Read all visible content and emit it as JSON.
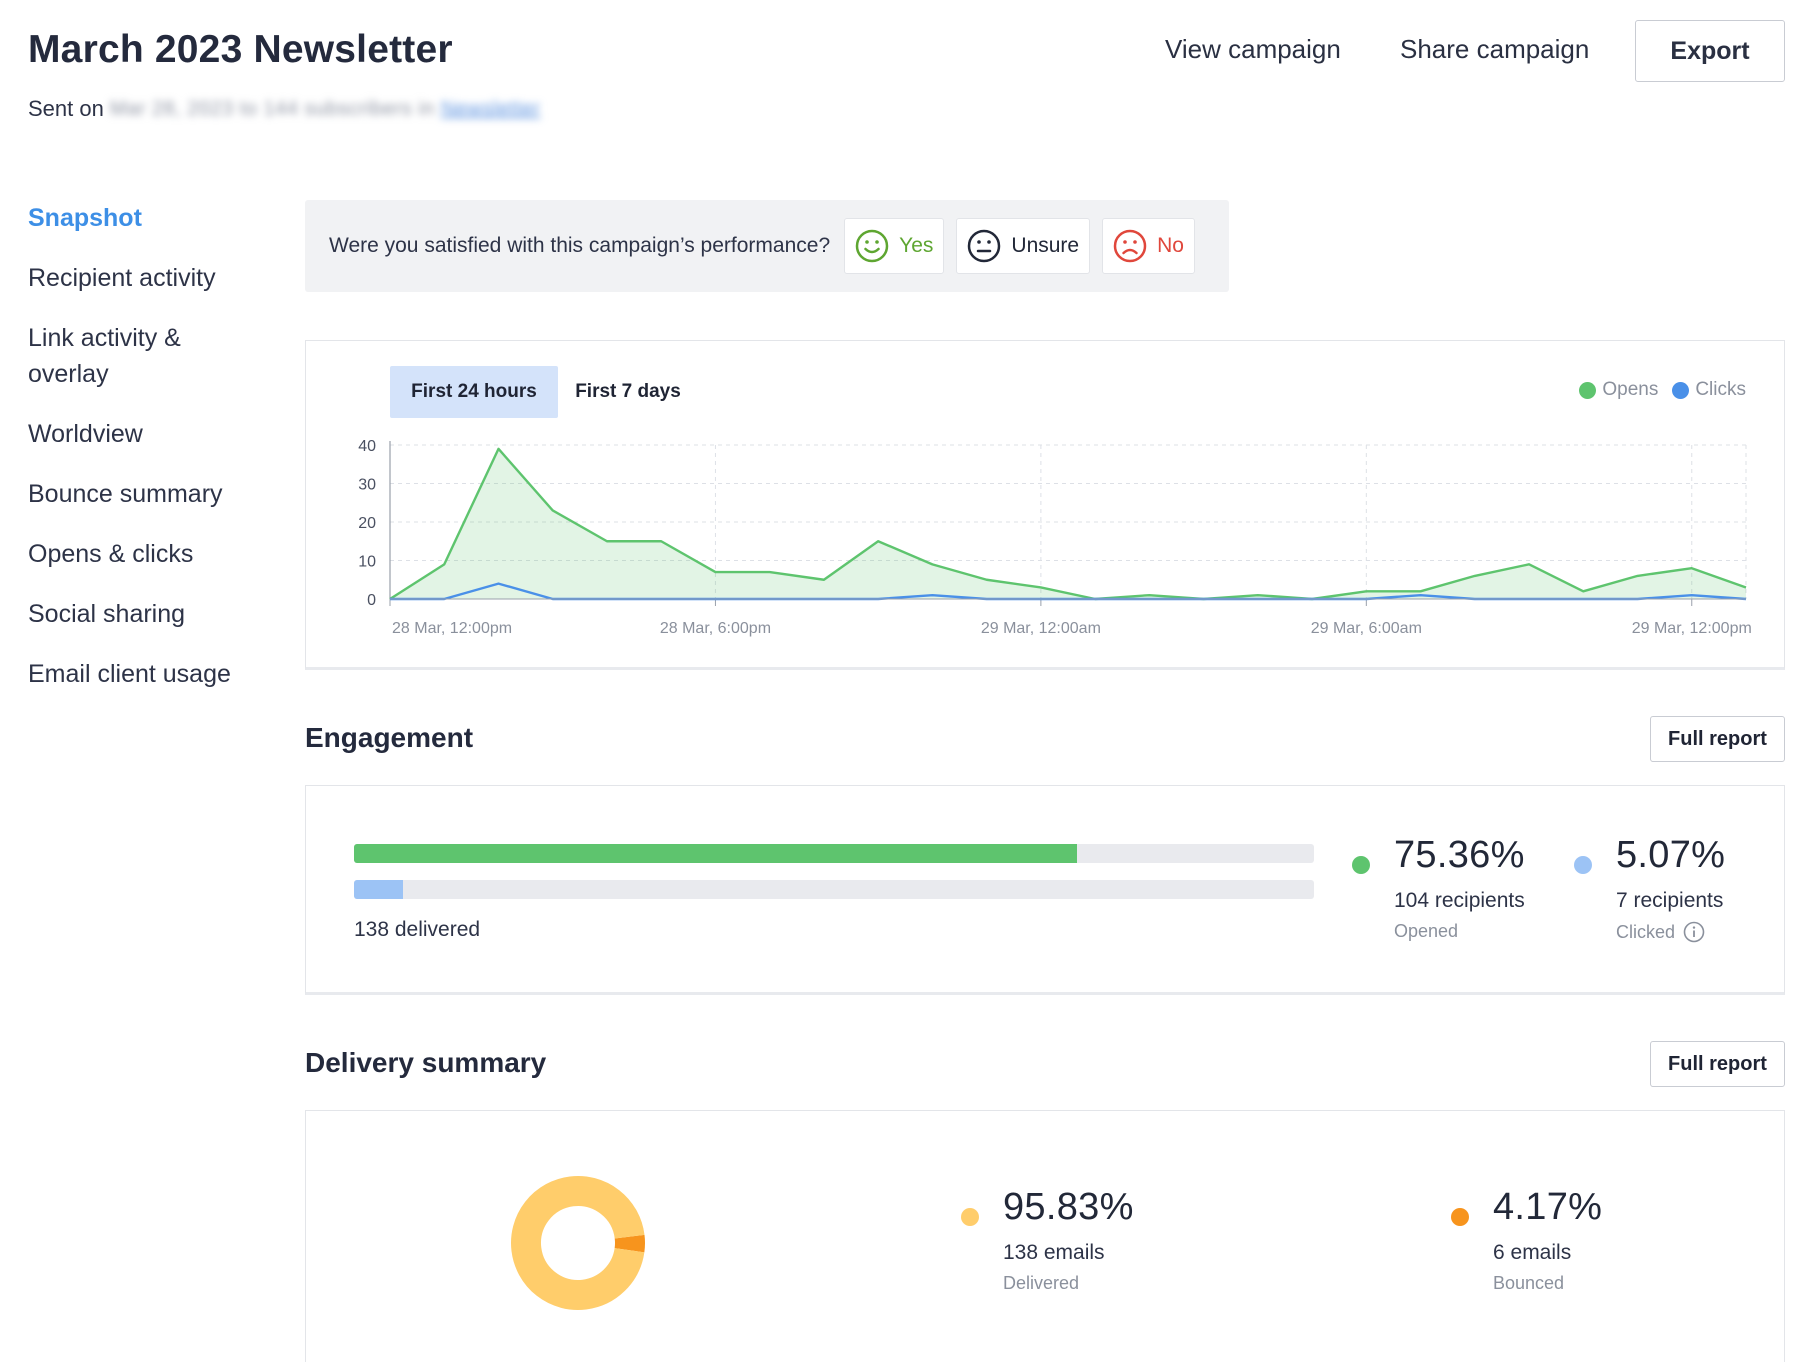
{
  "header": {
    "title": "March 2023 Newsletter",
    "sent_prefix": "Sent on",
    "sent_blurred": "Mar 28, 2023 to 144 subscribers in",
    "sent_blurred_link": "Newsletter",
    "view_campaign": "View campaign",
    "share_campaign": "Share campaign",
    "export": "Export"
  },
  "sidebar": {
    "items": [
      {
        "label": "Snapshot",
        "active": true
      },
      {
        "label": "Recipient activity"
      },
      {
        "label": "Link activity &"
      },
      {
        "label": "overlay"
      },
      {
        "label": "Worldview"
      },
      {
        "label": "Bounce summary"
      },
      {
        "label": "Opens & clicks"
      },
      {
        "label": "Social sharing"
      },
      {
        "label": "Email client usage"
      }
    ]
  },
  "satisfaction": {
    "question": "Were you satisfied with this campaign’s performance?",
    "yes": "Yes",
    "unsure": "Unsure",
    "no": "No",
    "colors": {
      "yes": "#5ea631",
      "unsure": "#222838",
      "no": "#e0473c"
    }
  },
  "chart_tabs": {
    "active": "First 24 hours",
    "other": "First 7 days"
  },
  "chart_data": {
    "type": "area",
    "legend": [
      {
        "name": "Opens",
        "color": "#5ec46e"
      },
      {
        "name": "Clicks",
        "color": "#4a90e8"
      }
    ],
    "legend_position": "top-right",
    "ylim": [
      0,
      40
    ],
    "yticks": [
      0,
      10,
      20,
      30,
      40
    ],
    "xtick_labels": [
      "28 Mar, 12:00pm",
      "28 Mar, 6:00pm",
      "29 Mar, 12:00am",
      "29 Mar, 6:00am",
      "29 Mar, 12:00pm"
    ],
    "grid": true,
    "x": [
      "28 Mar, 12:00pm",
      "28 Mar, 1:00pm",
      "28 Mar, 2:00pm",
      "28 Mar, 3:00pm",
      "28 Mar, 4:00pm",
      "28 Mar, 5:00pm",
      "28 Mar, 6:00pm",
      "28 Mar, 7:00pm",
      "28 Mar, 8:00pm",
      "28 Mar, 9:00pm",
      "28 Mar, 10:00pm",
      "28 Mar, 11:00pm",
      "29 Mar, 12:00am",
      "29 Mar, 1:00am",
      "29 Mar, 2:00am",
      "29 Mar, 3:00am",
      "29 Mar, 4:00am",
      "29 Mar, 5:00am",
      "29 Mar, 6:00am",
      "29 Mar, 7:00am",
      "29 Mar, 8:00am",
      "29 Mar, 9:00am",
      "29 Mar, 10:00am",
      "29 Mar, 11:00am",
      "29 Mar, 12:00pm",
      "29 Mar, 1:00pm"
    ],
    "series": [
      {
        "name": "Opens",
        "values": [
          0,
          9,
          39,
          23,
          15,
          15,
          7,
          7,
          5,
          15,
          9,
          5,
          3,
          0,
          1,
          0,
          1,
          0,
          2,
          2,
          6,
          9,
          2,
          6,
          8,
          3
        ]
      },
      {
        "name": "Clicks",
        "values": [
          0,
          0,
          4,
          0,
          0,
          0,
          0,
          0,
          0,
          0,
          1,
          0,
          0,
          0,
          0,
          0,
          0,
          0,
          0,
          1,
          0,
          0,
          0,
          0,
          1,
          0
        ]
      }
    ]
  },
  "engagement": {
    "title": "Engagement",
    "full_report": "Full report",
    "delivered_label": "138 delivered",
    "opened": {
      "pct": "75.36%",
      "value": 0.7536,
      "count": "104 recipients",
      "label": "Opened",
      "color": "#5ec46e"
    },
    "clicked": {
      "pct": "5.07%",
      "value": 0.0507,
      "count": "7 recipients",
      "label": "Clicked",
      "color": "#9cc3f5"
    }
  },
  "delivery": {
    "title": "Delivery summary",
    "full_report": "Full report",
    "delivered": {
      "pct": "95.83%",
      "value": 0.9583,
      "count": "138 emails",
      "label": "Delivered",
      "color": "#ffcd6b"
    },
    "bounced": {
      "pct": "4.17%",
      "value": 0.0417,
      "count": "6 emails",
      "label": "Bounced",
      "color": "#f7941d"
    }
  }
}
